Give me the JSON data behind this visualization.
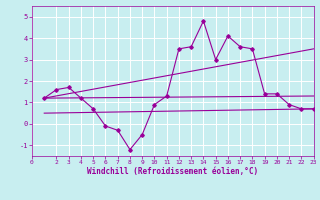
{
  "background_color": "#c8eef0",
  "grid_color": "#ffffff",
  "line_color": "#990099",
  "marker_color": "#990099",
  "xlabel": "Windchill (Refroidissement éolien,°C)",
  "xlabel_color": "#990099",
  "tick_color": "#990099",
  "xlim": [
    0,
    23
  ],
  "ylim": [
    -1.5,
    5.5
  ],
  "yticks": [
    -1,
    0,
    1,
    2,
    3,
    4,
    5
  ],
  "xticks": [
    0,
    2,
    3,
    4,
    5,
    6,
    7,
    8,
    9,
    10,
    11,
    12,
    13,
    14,
    15,
    16,
    17,
    18,
    19,
    20,
    21,
    22,
    23
  ],
  "series": [
    {
      "x": [
        1,
        2,
        3,
        4,
        5,
        6,
        7,
        8,
        9,
        10,
        11,
        12,
        13,
        14,
        15,
        16,
        17,
        18,
        19,
        20,
        21,
        22,
        23
      ],
      "y": [
        1.2,
        1.6,
        1.7,
        1.2,
        0.7,
        -0.1,
        -0.3,
        -1.2,
        -0.5,
        0.9,
        1.3,
        3.5,
        3.6,
        4.8,
        3.0,
        4.1,
        3.6,
        3.5,
        1.4,
        1.4,
        0.9,
        0.7,
        0.7
      ]
    },
    {
      "x": [
        1,
        23
      ],
      "y": [
        0.5,
        0.7
      ]
    },
    {
      "x": [
        1,
        23
      ],
      "y": [
        1.2,
        3.5
      ]
    },
    {
      "x": [
        1,
        23
      ],
      "y": [
        1.2,
        1.3
      ]
    }
  ]
}
